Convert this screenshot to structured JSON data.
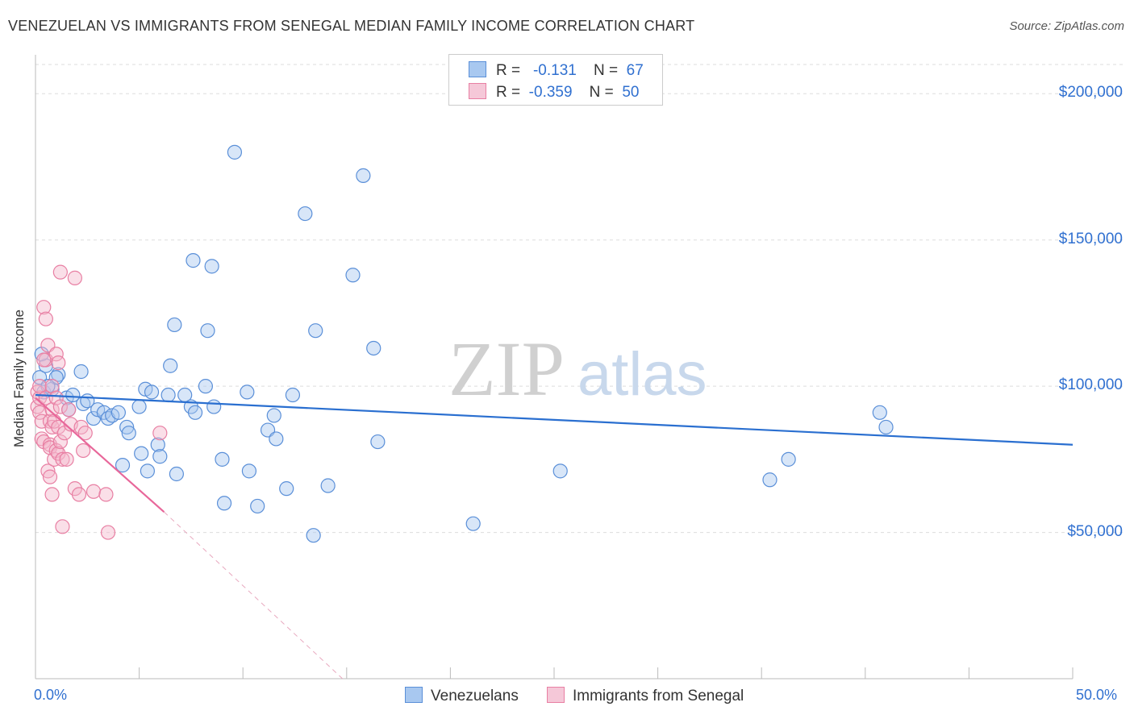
{
  "title": "VENEZUELAN VS IMMIGRANTS FROM SENEGAL MEDIAN FAMILY INCOME CORRELATION CHART",
  "source": "Source: ZipAtlas.com",
  "watermark": {
    "zip": "ZIP",
    "atlas": "atlas"
  },
  "legend_top": {
    "rows": [
      {
        "r_label": "R =",
        "r_value": "-0.131",
        "n_label": "N =",
        "n_value": "67"
      },
      {
        "r_label": "R =",
        "r_value": "-0.359",
        "n_label": "N =",
        "n_value": "50"
      }
    ]
  },
  "colors": {
    "blue_fill": "#a8c8f0",
    "blue_stroke": "#5a8fd8",
    "blue_line": "#2a6fd0",
    "pink_fill": "#f5b8cc",
    "pink_stroke": "#e87fa3",
    "pink_line": "#e8679a",
    "tick_text": "#3070d0",
    "grid": "#dddddd"
  },
  "chart_data": {
    "type": "scatter",
    "title": "VENEZUELAN VS IMMIGRANTS FROM SENEGAL MEDIAN FAMILY INCOME CORRELATION CHART",
    "xlabel": "",
    "ylabel": "Median Family Income",
    "xlim": [
      0,
      50
    ],
    "ylim": [
      0,
      210000
    ],
    "x_tick_labels": [
      "0.0%",
      "50.0%"
    ],
    "y_ticks": [
      50000,
      100000,
      150000,
      200000
    ],
    "y_tick_labels": [
      "$50,000",
      "$100,000",
      "$150,000",
      "$200,000"
    ],
    "grid": true,
    "legend_position": "bottom-center",
    "series": [
      {
        "name": "Venezuelans",
        "color": "#a8c8f0",
        "r": -0.131,
        "n": 67,
        "trend": {
          "x": [
            0,
            50
          ],
          "y": [
            97000,
            80000
          ],
          "dashed_from": null
        },
        "points": [
          [
            0.2,
            103000
          ],
          [
            0.4,
            98000
          ],
          [
            0.5,
            107000
          ],
          [
            0.8,
            99000
          ],
          [
            1.1,
            104000
          ],
          [
            1.0,
            103000
          ],
          [
            1.5,
            96000
          ],
          [
            1.6,
            92000
          ],
          [
            1.8,
            97000
          ],
          [
            2.2,
            105000
          ],
          [
            2.3,
            94000
          ],
          [
            2.5,
            95000
          ],
          [
            2.8,
            89000
          ],
          [
            3.0,
            92000
          ],
          [
            3.3,
            91000
          ],
          [
            3.5,
            89000
          ],
          [
            3.7,
            90000
          ],
          [
            4.0,
            91000
          ],
          [
            4.2,
            73000
          ],
          [
            4.4,
            86000
          ],
          [
            4.5,
            84000
          ],
          [
            5.0,
            93000
          ],
          [
            5.1,
            77000
          ],
          [
            5.3,
            99000
          ],
          [
            5.4,
            71000
          ],
          [
            5.6,
            98000
          ],
          [
            5.9,
            80000
          ],
          [
            6.0,
            76000
          ],
          [
            6.4,
            97000
          ],
          [
            6.5,
            107000
          ],
          [
            6.7,
            121000
          ],
          [
            6.8,
            70000
          ],
          [
            7.2,
            97000
          ],
          [
            7.6,
            143000
          ],
          [
            7.5,
            93000
          ],
          [
            7.7,
            91000
          ],
          [
            8.2,
            100000
          ],
          [
            8.3,
            119000
          ],
          [
            8.5,
            141000
          ],
          [
            8.6,
            93000
          ],
          [
            9.0,
            75000
          ],
          [
            9.1,
            60000
          ],
          [
            9.6,
            180000
          ],
          [
            10.2,
            98000
          ],
          [
            10.3,
            71000
          ],
          [
            10.7,
            59000
          ],
          [
            11.2,
            85000
          ],
          [
            11.6,
            82000
          ],
          [
            11.5,
            90000
          ],
          [
            12.1,
            65000
          ],
          [
            12.4,
            97000
          ],
          [
            13.0,
            159000
          ],
          [
            13.4,
            49000
          ],
          [
            13.5,
            119000
          ],
          [
            14.1,
            66000
          ],
          [
            15.3,
            138000
          ],
          [
            15.8,
            172000
          ],
          [
            16.3,
            113000
          ],
          [
            16.5,
            81000
          ],
          [
            21.1,
            53000
          ],
          [
            25.3,
            71000
          ],
          [
            35.4,
            68000
          ],
          [
            36.3,
            75000
          ],
          [
            40.7,
            91000
          ],
          [
            41.0,
            86000
          ],
          [
            0.3,
            111000
          ],
          [
            0.6,
            100000
          ]
        ]
      },
      {
        "name": "Immigrants from Senegal",
        "color": "#f5b8cc",
        "r": -0.359,
        "n": 50,
        "trend": {
          "x": [
            0,
            6.2
          ],
          "y": [
            96000,
            57000
          ],
          "dashed_to": [
            14.8,
            0
          ]
        },
        "points": [
          [
            0.1,
            98000
          ],
          [
            0.1,
            93000
          ],
          [
            0.2,
            96000
          ],
          [
            0.2,
            100000
          ],
          [
            0.2,
            91000
          ],
          [
            0.3,
            88000
          ],
          [
            0.3,
            82000
          ],
          [
            0.4,
            81000
          ],
          [
            0.4,
            127000
          ],
          [
            0.5,
            123000
          ],
          [
            0.5,
            109000
          ],
          [
            0.5,
            96000
          ],
          [
            0.6,
            114000
          ],
          [
            0.6,
            71000
          ],
          [
            0.7,
            88000
          ],
          [
            0.7,
            80000
          ],
          [
            0.7,
            79000
          ],
          [
            0.7,
            69000
          ],
          [
            0.8,
            100000
          ],
          [
            0.8,
            92000
          ],
          [
            0.8,
            86000
          ],
          [
            0.8,
            63000
          ],
          [
            0.9,
            75000
          ],
          [
            0.9,
            88000
          ],
          [
            1.0,
            111000
          ],
          [
            1.0,
            78000
          ],
          [
            1.0,
            96000
          ],
          [
            1.1,
            108000
          ],
          [
            1.1,
            86000
          ],
          [
            1.1,
            77000
          ],
          [
            1.2,
            139000
          ],
          [
            1.2,
            93000
          ],
          [
            1.2,
            81000
          ],
          [
            1.3,
            75000
          ],
          [
            1.3,
            52000
          ],
          [
            1.4,
            84000
          ],
          [
            1.5,
            75000
          ],
          [
            1.6,
            92000
          ],
          [
            1.7,
            87000
          ],
          [
            1.9,
            65000
          ],
          [
            1.9,
            137000
          ],
          [
            2.1,
            63000
          ],
          [
            2.2,
            86000
          ],
          [
            2.3,
            78000
          ],
          [
            2.4,
            84000
          ],
          [
            2.8,
            64000
          ],
          [
            3.4,
            63000
          ],
          [
            3.5,
            50000
          ],
          [
            6.0,
            84000
          ],
          [
            0.4,
            109000
          ]
        ]
      }
    ]
  },
  "bottom_legend": {
    "items": [
      "Venezuelans",
      "Immigrants from Senegal"
    ]
  }
}
